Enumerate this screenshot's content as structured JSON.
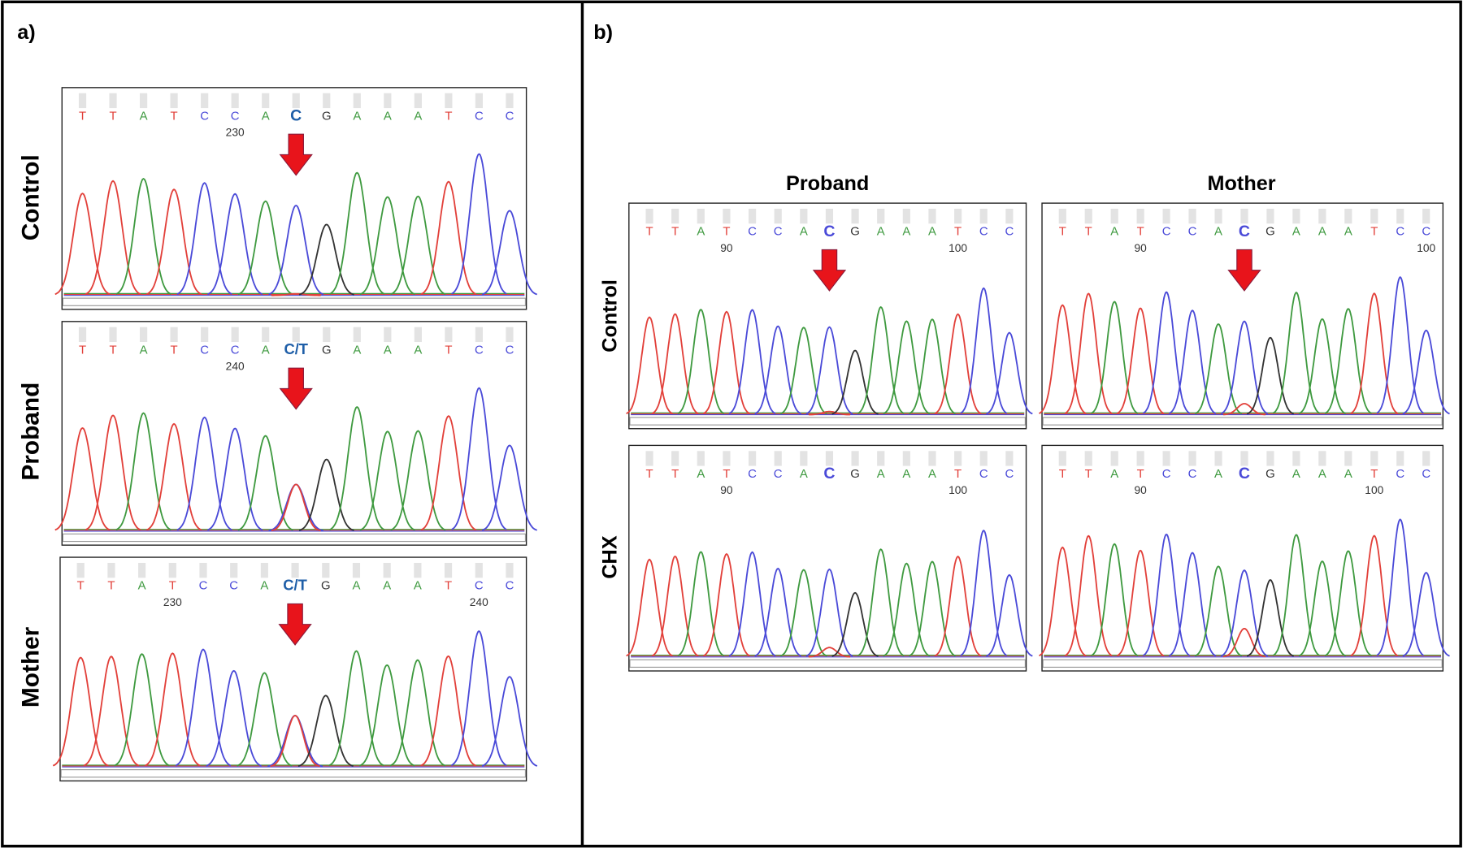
{
  "panels": {
    "a": {
      "label": "a)",
      "rows": [
        {
          "label": "Control",
          "bases": [
            "T",
            "T",
            "A",
            "T",
            "C",
            "C",
            "A",
            "C",
            "G",
            "A",
            "A",
            "A",
            "T",
            "C",
            "C"
          ],
          "positions": [
            "230"
          ]
        },
        {
          "label": "Proband",
          "bases": [
            "T",
            "T",
            "A",
            "T",
            "C",
            "C",
            "A",
            "C/T",
            "G",
            "A",
            "A",
            "A",
            "T",
            "C",
            "C"
          ],
          "positions": [
            "240"
          ]
        },
        {
          "label": "Mother",
          "bases": [
            "T",
            "T",
            "A",
            "T",
            "C",
            "C",
            "A",
            "C/T",
            "G",
            "A",
            "A",
            "A",
            "T",
            "C",
            "C"
          ],
          "positions": [
            "230",
            "240"
          ]
        }
      ]
    },
    "b": {
      "label": "b)",
      "columns": [
        "Proband",
        "Mother"
      ],
      "rows": [
        "Control",
        "CHX"
      ],
      "traces": [
        {
          "bases": [
            "T",
            "T",
            "A",
            "T",
            "C",
            "C",
            "A",
            "C",
            "G",
            "A",
            "A",
            "A",
            "T",
            "C",
            "C"
          ],
          "positions": [
            "90",
            "100"
          ]
        },
        {
          "bases": [
            "T",
            "T",
            "A",
            "T",
            "C",
            "C",
            "A",
            "C",
            "G",
            "A",
            "A",
            "A",
            "T",
            "C",
            "C"
          ],
          "positions": [
            "90",
            "100"
          ]
        },
        {
          "bases": [
            "T",
            "T",
            "A",
            "T",
            "C",
            "C",
            "A",
            "C",
            "G",
            "A",
            "A",
            "A",
            "T",
            "C",
            "C"
          ],
          "positions": [
            "90",
            "100"
          ]
        },
        {
          "bases": [
            "T",
            "T",
            "A",
            "T",
            "C",
            "C",
            "A",
            "C",
            "G",
            "A",
            "A",
            "A",
            "T",
            "C",
            "C"
          ],
          "positions": [
            "90",
            "100"
          ]
        }
      ]
    }
  }
}
